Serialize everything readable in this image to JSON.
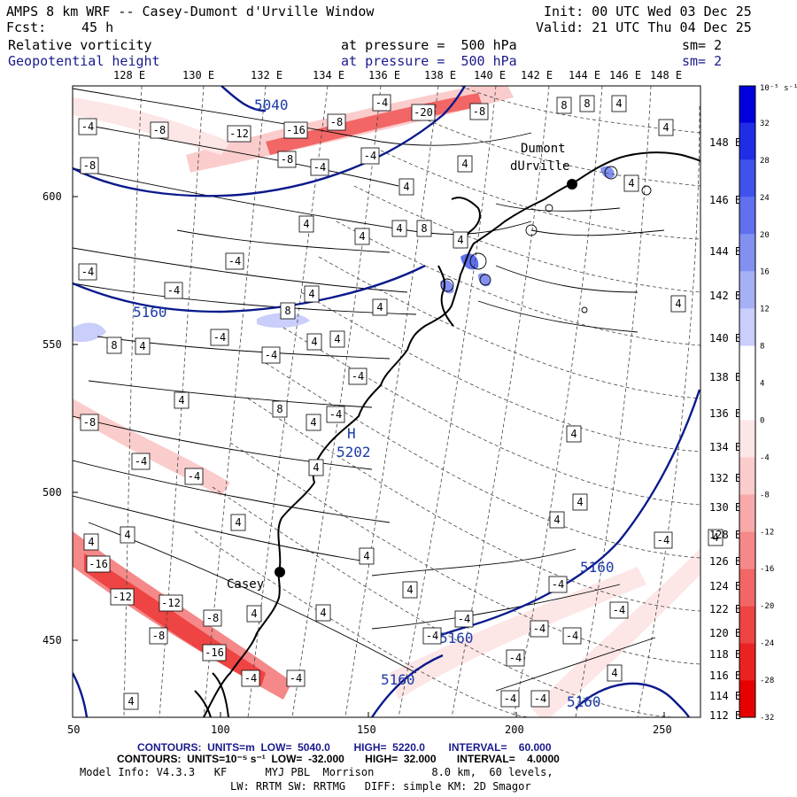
{
  "header": {
    "title": "AMPS 8 km WRF -- Casey-Dumont d'Urville Window",
    "fcst_label": "Fcst:",
    "fcst_value": "45 h",
    "init": "Init: 00 UTC Wed 03 Dec 25",
    "valid": "Valid: 21 UTC Thu 04 Dec 25"
  },
  "fields": [
    {
      "name": "Relative vorticity",
      "level": "at pressure =  500 hPa",
      "sm": "sm= 2",
      "color": "#000000"
    },
    {
      "name": "Geopotential height",
      "level": "at pressure =  500 hPa",
      "sm": "sm= 2",
      "color": "#1a1a8c"
    }
  ],
  "map": {
    "top_longitudes": [
      "128 E",
      "130 E",
      "132 E",
      "134 E",
      "136 E",
      "138 E",
      "140 E",
      "142 E",
      "144 E",
      "146 E",
      "148 E"
    ],
    "right_longitudes": [
      "148 E",
      "146 E",
      "144 E",
      "142 E",
      "140 E",
      "138 E",
      "136 E",
      "134 E",
      "132 E",
      "130 E",
      "128 E",
      "126 E",
      "124 E",
      "122 E",
      "120 E",
      "118 E",
      "116 E",
      "114 E",
      "112 E"
    ],
    "x_ticks": [
      "50",
      "100",
      "150",
      "200",
      "250"
    ],
    "y_ticks": [
      "600",
      "550",
      "500",
      "450"
    ],
    "stations": [
      {
        "name": "Casey",
        "x": 120,
        "y": 472
      },
      {
        "name": "Dumont d'Urville",
        "x": 219,
        "y": 606
      }
    ],
    "high_label": "H",
    "high_value": "5202",
    "height_labels": [
      "5040",
      "5160",
      "5160",
      "5160",
      "5160",
      "5160"
    ],
    "vorticity_labels": [
      "-4",
      "-8",
      "-12",
      "-16",
      "-20",
      "4",
      "8"
    ],
    "coastline_color": "#000000",
    "height_contour_color": "#0a1a8c"
  },
  "colorbar": {
    "unit": "10⁻⁵ s⁻¹",
    "labels": [
      "32",
      "28",
      "24",
      "20",
      "16",
      "12",
      "8",
      "4",
      "0",
      "-4",
      "-8",
      "-12",
      "-16",
      "-20",
      "-24",
      "-28",
      "-32"
    ],
    "colors": [
      "#0000dd",
      "#1f2ee6",
      "#3f52ea",
      "#6070ee",
      "#8290f1",
      "#a6b0f5",
      "#c9cefa",
      "#ffffff",
      "#ffffff",
      "#fde6e6",
      "#fbcccc",
      "#f8aaaa",
      "#f58888",
      "#f26666",
      "#ee4444",
      "#ea2222",
      "#e60000"
    ]
  },
  "footer": {
    "contours1_label": "CONTOURS:  UNITS=m  LOW=  5040.0        HIGH=  5220.0        INTERVAL=    60.000",
    "contours2_label": "CONTOURS:  UNITS=10⁻⁵ s⁻¹  LOW=  -32.000       HIGH=  32.000       INTERVAL=    4.0000",
    "model_info": "Model Info: V4.3.3   KF      MYJ PBL  Morrison         8.0 km,  60 levels,",
    "model_info2": "LW: RRTM SW: RRTMG   DIFF: simple KM: 2D Smagor"
  }
}
